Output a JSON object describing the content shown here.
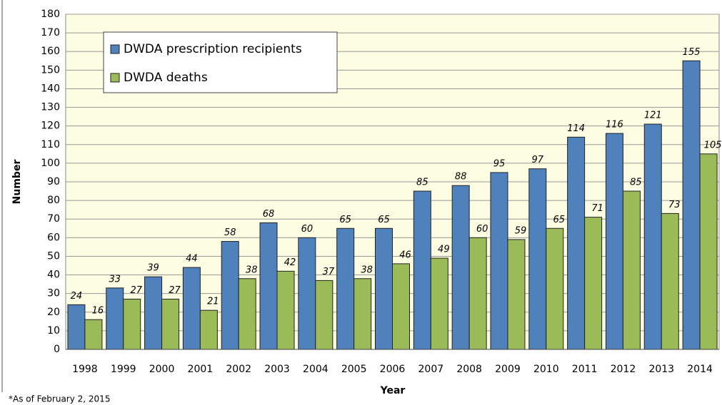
{
  "chart_data": {
    "type": "bar",
    "xlabel": "Year",
    "ylabel": "Number",
    "footnote": "*As of February 2, 2015",
    "categories": [
      "1998",
      "1999",
      "2000",
      "2001",
      "2002",
      "2003",
      "2004",
      "2005",
      "2006",
      "2007",
      "2008",
      "2009",
      "2010",
      "2011",
      "2012",
      "2013",
      "2014"
    ],
    "series": [
      {
        "name": "DWDA prescription recipients",
        "color": "#4f81bd",
        "values": [
          24,
          33,
          39,
          44,
          58,
          68,
          60,
          65,
          65,
          85,
          88,
          95,
          97,
          114,
          116,
          121,
          155
        ]
      },
      {
        "name": "DWDA deaths",
        "color": "#9bbb59",
        "values": [
          16,
          27,
          27,
          21,
          38,
          42,
          37,
          38,
          46,
          49,
          60,
          59,
          65,
          71,
          85,
          73,
          105
        ]
      }
    ],
    "ylim": [
      0,
      180
    ],
    "yticks": [
      0,
      10,
      20,
      30,
      40,
      50,
      60,
      70,
      80,
      90,
      100,
      110,
      120,
      130,
      140,
      150,
      160,
      170,
      180
    ],
    "grid": true,
    "legend": "upper left",
    "data_labels": true
  }
}
